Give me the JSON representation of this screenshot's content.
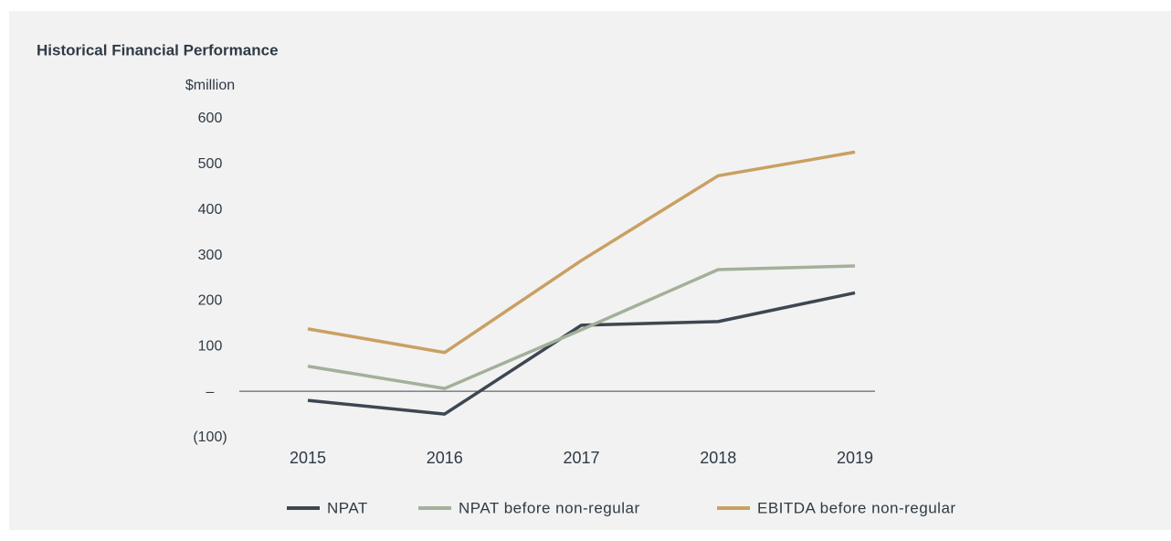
{
  "chart_data": {
    "type": "line",
    "title": "Historical Financial Performance",
    "y_label": "$million",
    "categories": [
      "2015",
      "2016",
      "2017",
      "2018",
      "2019"
    ],
    "series": [
      {
        "name": "NPAT",
        "color": "#3d4752",
        "values": [
          -20,
          -50,
          145,
          153,
          216
        ]
      },
      {
        "name": "NPAT before non-regular",
        "color": "#a3b09a",
        "values": [
          55,
          6,
          135,
          267,
          275
        ]
      },
      {
        "name": "EBITDA before non-regular",
        "color": "#c9a063",
        "values": [
          137,
          85,
          287,
          473,
          525
        ]
      }
    ],
    "ylim": [
      -100,
      600
    ],
    "yticks": [
      {
        "value": -100,
        "label": "(100)"
      },
      {
        "value": 0,
        "label": "–"
      },
      100,
      200,
      300,
      400,
      500,
      600
    ],
    "grid": false,
    "legend": "bottom"
  }
}
